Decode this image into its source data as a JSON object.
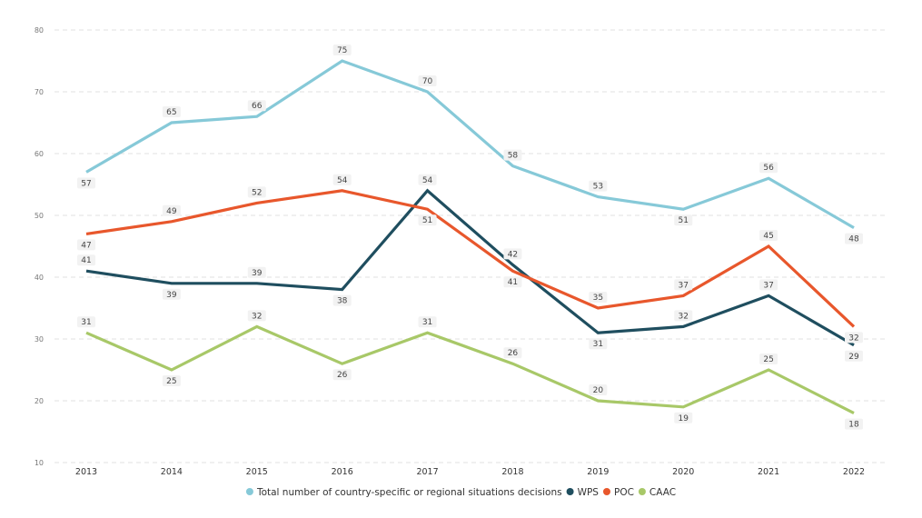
{
  "chart_data": {
    "type": "line",
    "title": "",
    "xlabel": "",
    "ylabel": "",
    "x": [
      "2013",
      "2014",
      "2015",
      "2016",
      "2017",
      "2018",
      "2019",
      "2020",
      "2021",
      "2022"
    ],
    "ylim": [
      10,
      80
    ],
    "yticks": [
      "10",
      "20",
      "30",
      "40",
      "50",
      "60",
      "70",
      "80"
    ],
    "grid": true,
    "legend_position": "bottom",
    "series": [
      {
        "name": "Total number of country-specific or regional situations decisions",
        "color": "#86c9d8",
        "label_above": [
          false,
          true,
          true,
          true,
          true,
          true,
          true,
          false,
          true,
          false
        ],
        "values": [
          57,
          65,
          66,
          75,
          70,
          58,
          53,
          51,
          56,
          48
        ]
      },
      {
        "name": "WPS",
        "color": "#1f4e5f",
        "label_above": [
          true,
          false,
          true,
          false,
          true,
          true,
          false,
          true,
          true,
          false
        ],
        "values": [
          41,
          39,
          39,
          38,
          54,
          42,
          31,
          32,
          37,
          29
        ]
      },
      {
        "name": "POC",
        "color": "#e8572c",
        "label_above": [
          false,
          true,
          true,
          true,
          false,
          false,
          true,
          true,
          true,
          false
        ],
        "values": [
          47,
          49,
          52,
          54,
          51,
          41,
          35,
          37,
          45,
          32
        ]
      },
      {
        "name": "CAAC",
        "color": "#a8c868",
        "label_above": [
          true,
          false,
          true,
          false,
          true,
          true,
          true,
          false,
          true,
          false
        ],
        "values": [
          31,
          25,
          32,
          26,
          31,
          26,
          20,
          19,
          25,
          18
        ]
      }
    ]
  }
}
